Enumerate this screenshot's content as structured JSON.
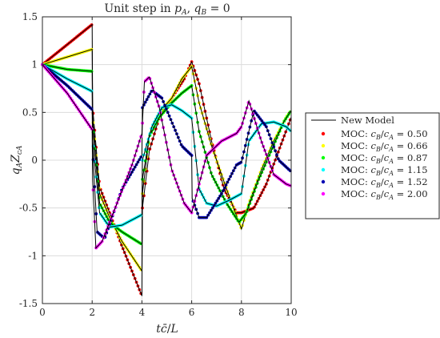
{
  "chart_data": {
    "type": "line",
    "title": "Unit step in p_A, q_B = 0",
    "title_display": "Unit step in pA, qB = 0",
    "xlabel": "tc̄/L",
    "ylabel": "qAZcA",
    "xlim": [
      0,
      10
    ],
    "ylim": [
      -1.5,
      1.5
    ],
    "xticks": [
      0,
      2,
      4,
      6,
      8,
      10
    ],
    "yticks": [
      -1.5,
      -1,
      -0.5,
      0,
      0.5,
      1,
      1.5
    ],
    "grid": true,
    "legend_position": "right",
    "line_color": "#000000",
    "series": [
      {
        "name": "MOC: cB/cA = 0.50",
        "color": "#ff0000",
        "x": [
          0,
          1,
          2,
          2.02,
          2.3,
          2.7,
          3.2,
          4,
          4.02,
          4.3,
          4.7,
          5.2,
          5.7,
          6,
          6.3,
          6.8,
          7.3,
          7.8,
          8,
          8.5,
          9,
          9.5,
          10
        ],
        "y": [
          1,
          1.21,
          1.42,
          0.55,
          -0.28,
          -0.55,
          -0.9,
          -1.42,
          -0.5,
          0.1,
          0.45,
          0.65,
          0.85,
          1.03,
          0.8,
          0.2,
          -0.3,
          -0.55,
          -0.55,
          -0.5,
          -0.25,
          0.1,
          0.45
        ]
      },
      {
        "name": "MOC: cB/cA = 0.66",
        "color": "#ffff00",
        "x": [
          0,
          1,
          2,
          2.02,
          2.3,
          2.7,
          3.2,
          4,
          4.02,
          4.3,
          4.7,
          5.2,
          5.6,
          6,
          6.3,
          6.8,
          7.4,
          8,
          8.3,
          8.8,
          9.3,
          9.8,
          10
        ],
        "y": [
          1,
          1.08,
          1.16,
          0.45,
          -0.35,
          -0.6,
          -0.85,
          -1.16,
          -0.35,
          0.25,
          0.5,
          0.65,
          0.85,
          0.98,
          0.6,
          0.15,
          -0.3,
          -0.72,
          -0.45,
          -0.1,
          0.2,
          0.45,
          0.52
        ]
      },
      {
        "name": "MOC: cB/cA = 0.87",
        "color": "#00ff00",
        "x": [
          0,
          1,
          2,
          2.02,
          2.3,
          2.7,
          3.2,
          4,
          4.02,
          4.3,
          4.7,
          5.2,
          5.6,
          6,
          6.3,
          6.8,
          7.4,
          7.9,
          8.2,
          8.7,
          9.2,
          9.7,
          10
        ],
        "y": [
          1,
          0.95,
          0.93,
          0.35,
          -0.45,
          -0.65,
          -0.75,
          -0.88,
          -0.2,
          0.25,
          0.45,
          0.6,
          0.7,
          0.78,
          0.3,
          -0.15,
          -0.45,
          -0.65,
          -0.55,
          -0.2,
          0.1,
          0.4,
          0.52
        ]
      },
      {
        "name": "MOC: cB/cA = 1.15",
        "color": "#00ffff",
        "x": [
          0,
          1,
          2,
          2.02,
          2.3,
          2.7,
          3.2,
          4,
          4.02,
          4.4,
          4.8,
          5.2,
          5.6,
          6,
          6.3,
          6.6,
          7,
          7.5,
          8,
          8.3,
          8.8,
          9.3,
          9.8,
          10
        ],
        "y": [
          1,
          0.85,
          0.72,
          0.2,
          -0.55,
          -0.7,
          -0.68,
          -0.57,
          0,
          0.35,
          0.55,
          0.58,
          0.52,
          0.44,
          -0.3,
          -0.45,
          -0.48,
          -0.42,
          -0.35,
          0.2,
          0.38,
          0.4,
          0.35,
          0.3
        ]
      },
      {
        "name": "MOC: cB/cA = 1.52",
        "color": "#0000b4",
        "x": [
          0,
          1,
          2,
          2.02,
          2.2,
          2.5,
          3.2,
          4,
          4.02,
          4.4,
          4.8,
          5.2,
          5.6,
          6,
          6.02,
          6.3,
          6.6,
          7.2,
          7.8,
          8,
          8.5,
          9,
          9.5,
          10
        ],
        "y": [
          1,
          0.78,
          0.53,
          0.1,
          -0.75,
          -0.82,
          -0.3,
          0.05,
          0.55,
          0.73,
          0.65,
          0.4,
          0.15,
          0.05,
          -0.4,
          -0.6,
          -0.6,
          -0.35,
          -0.05,
          -0.02,
          0.52,
          0.35,
          0,
          -0.12
        ]
      },
      {
        "name": "MOC: cB/cA = 2.00",
        "color": "#ff00ff",
        "x": [
          0,
          1,
          2,
          2.02,
          2.15,
          2.4,
          3,
          3.6,
          4,
          4.1,
          4.3,
          4.7,
          5.2,
          5.7,
          6,
          6.3,
          6.6,
          7.2,
          7.8,
          8,
          8.3,
          8.8,
          9.3,
          9.8,
          10
        ],
        "y": [
          1,
          0.7,
          0.32,
          -0.2,
          -0.92,
          -0.85,
          -0.45,
          -0.05,
          0.28,
          0.82,
          0.87,
          0.55,
          -0.1,
          -0.45,
          -0.55,
          -0.25,
          0.05,
          0.2,
          0.28,
          0.35,
          0.62,
          0.2,
          -0.15,
          -0.25,
          -0.27
        ]
      }
    ],
    "reference_series": {
      "name": "New Model",
      "color": "#000000"
    }
  }
}
